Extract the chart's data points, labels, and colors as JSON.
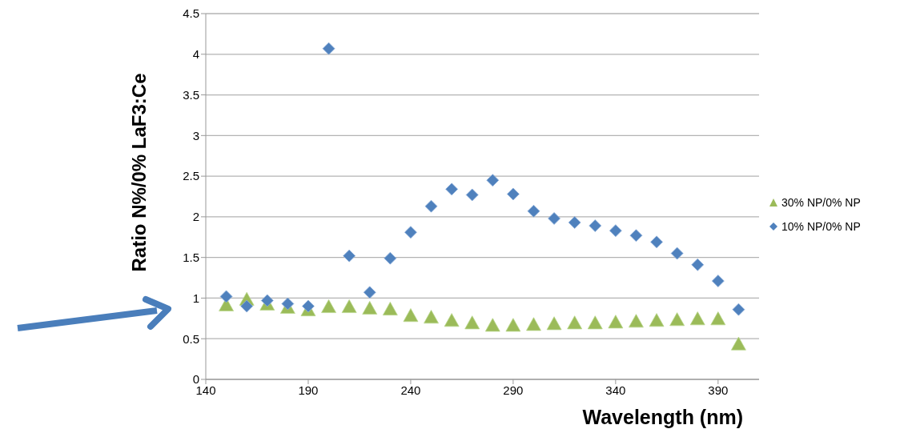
{
  "chart_data": {
    "type": "scatter",
    "xlabel": "Wavelength (nm)",
    "ylabel": "Ratio N%/0% LaF3:Ce",
    "x": [
      150,
      160,
      170,
      180,
      190,
      200,
      210,
      220,
      230,
      240,
      250,
      260,
      270,
      280,
      290,
      300,
      310,
      320,
      330,
      340,
      350,
      360,
      370,
      380,
      390,
      400
    ],
    "series": [
      {
        "name": "30% NP/0% NP",
        "color": "#9bbb59",
        "marker": "triangle",
        "values": [
          0.93,
          1.0,
          0.94,
          0.9,
          0.87,
          0.91,
          0.91,
          0.89,
          0.88,
          0.8,
          0.78,
          0.74,
          0.71,
          0.68,
          0.68,
          0.69,
          0.7,
          0.71,
          0.71,
          0.72,
          0.73,
          0.74,
          0.75,
          0.76,
          0.76,
          0.45
        ]
      },
      {
        "name": "10% NP/0% NP",
        "color": "#4f81bd",
        "marker": "diamond",
        "values": [
          1.02,
          0.9,
          0.97,
          0.93,
          0.9,
          4.07,
          1.52,
          1.07,
          1.49,
          1.81,
          2.13,
          2.34,
          2.27,
          2.45,
          2.28,
          2.07,
          1.98,
          1.93,
          1.89,
          1.83,
          1.77,
          1.69,
          1.55,
          1.41,
          1.21,
          0.86
        ]
      }
    ],
    "xlim": [
      140,
      410
    ],
    "xticks": [
      140,
      190,
      240,
      290,
      340,
      390
    ],
    "ylim": [
      0,
      4.5
    ],
    "yticks": [
      0,
      0.5,
      1,
      1.5,
      2,
      2.5,
      3,
      3.5,
      4,
      4.5
    ],
    "grid": "y",
    "legend": "right"
  }
}
